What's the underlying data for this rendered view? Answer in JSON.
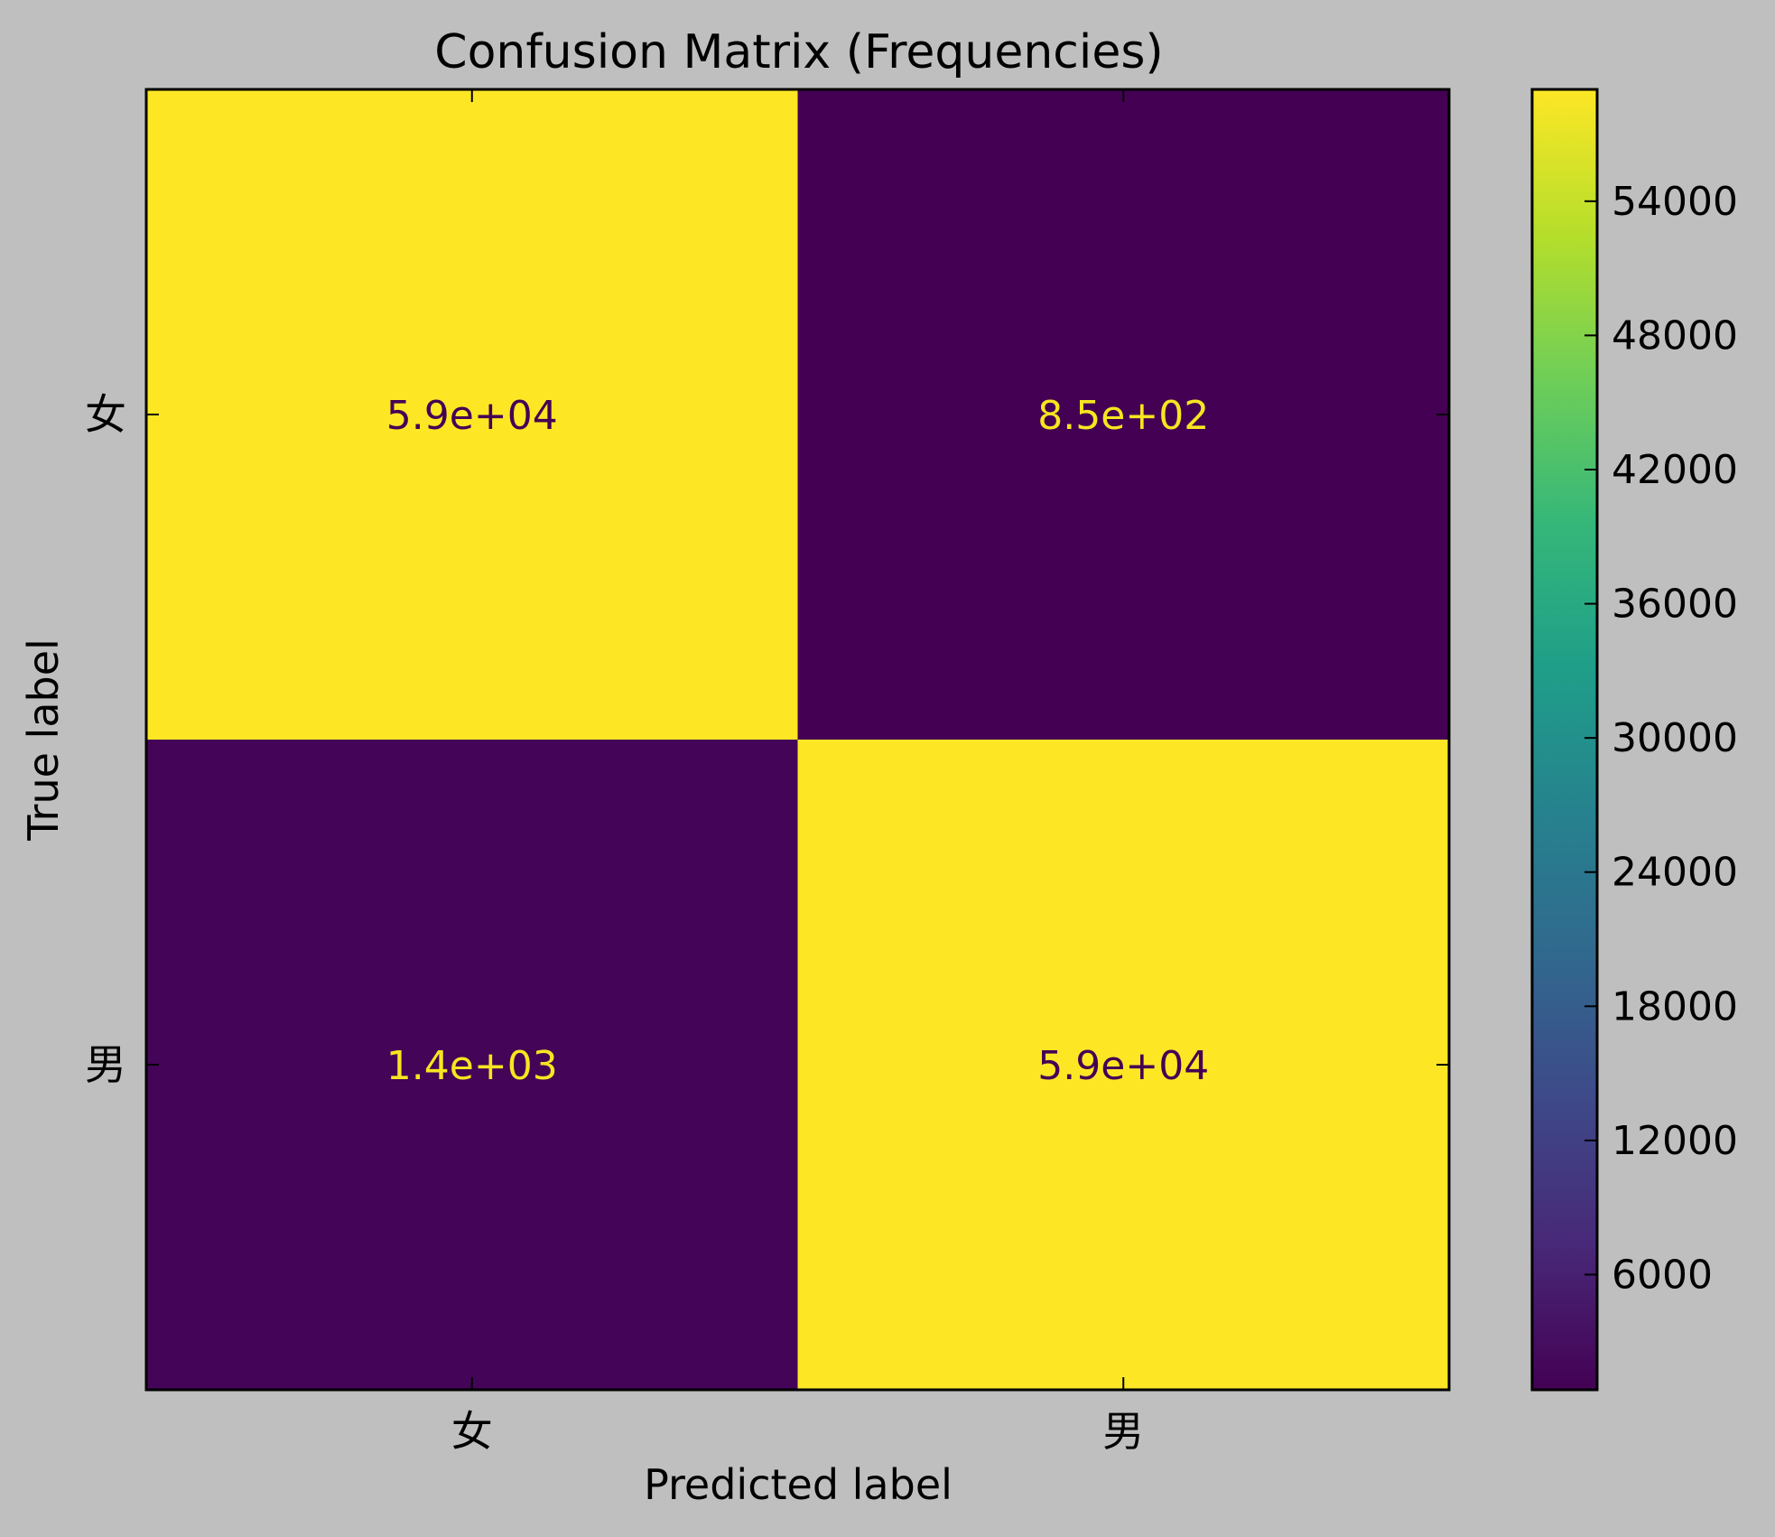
{
  "chart_data": {
    "type": "heatmap",
    "title": "Confusion Matrix (Frequencies)",
    "xlabel": "Predicted label",
    "ylabel": "True label",
    "x_categories": [
      "女",
      "男"
    ],
    "y_categories": [
      "女",
      "男"
    ],
    "values": [
      [
        59000,
        850
      ],
      [
        1400,
        59000
      ]
    ],
    "cell_labels": [
      [
        "5.9e+04",
        "8.5e+02"
      ],
      [
        "1.4e+03",
        "5.9e+04"
      ]
    ],
    "colormap": "viridis",
    "colorbar": {
      "ticks": [
        6000,
        12000,
        18000,
        24000,
        30000,
        36000,
        42000,
        48000,
        54000
      ],
      "tick_labels": [
        "6000",
        "12000",
        "18000",
        "24000",
        "30000",
        "36000",
        "42000",
        "48000",
        "54000"
      ],
      "range": [
        850,
        59000
      ]
    },
    "text_color_on_dark": "#f6e620",
    "text_color_on_light": "#440154",
    "background": "#bfbfbf"
  }
}
